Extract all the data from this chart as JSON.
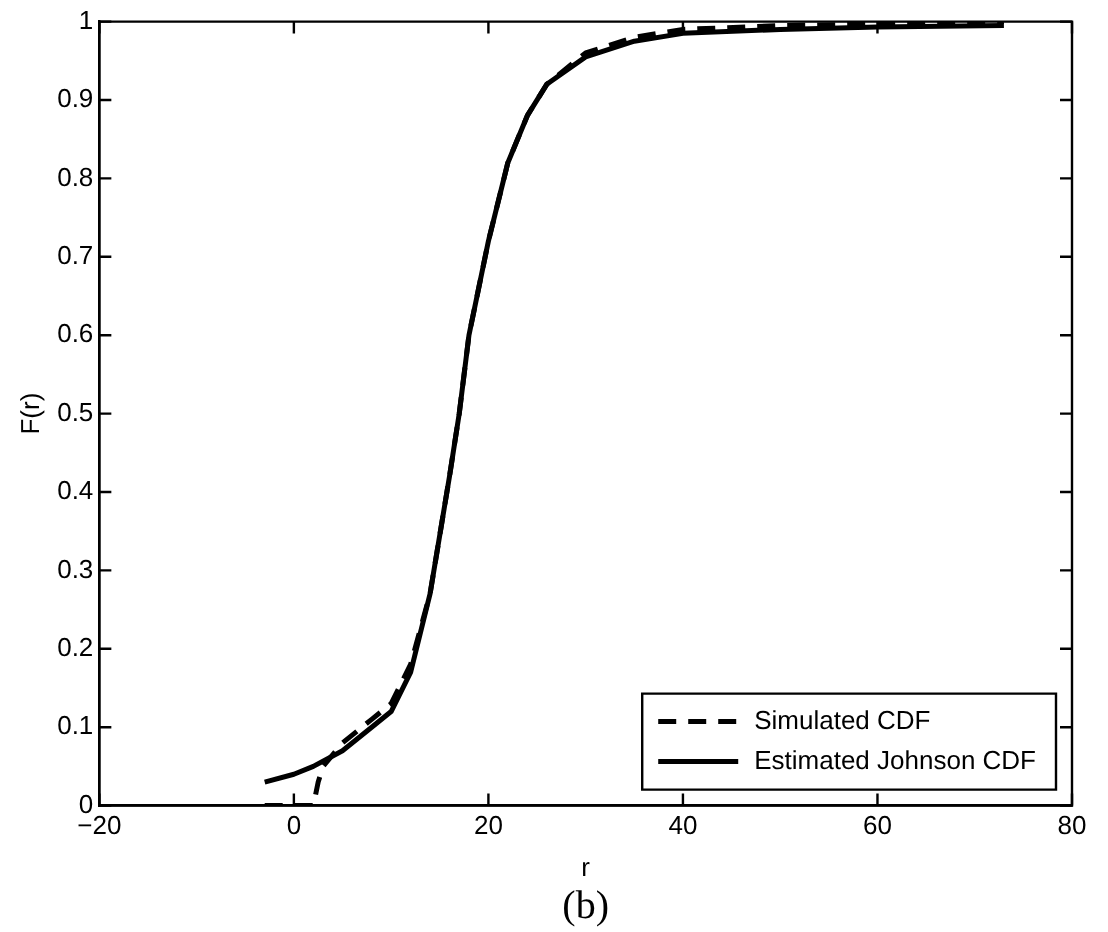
{
  "chart_data": {
    "type": "line",
    "xlabel": "r",
    "ylabel": "F(r)",
    "annotations": [
      "(b)"
    ],
    "xlim": [
      -20,
      80
    ],
    "xticks": [
      {
        "value": -20,
        "label": "−20"
      },
      0,
      20,
      40,
      60,
      80
    ],
    "ylim": [
      0,
      1
    ],
    "yticks": [
      0,
      0.1,
      0.2,
      0.3,
      0.4,
      0.5,
      0.6,
      0.7,
      0.8,
      0.9,
      1
    ],
    "grid": false,
    "legend": "bottom right",
    "marker": "none",
    "series": [
      {
        "name": "Simulated CDF",
        "color": "#000000",
        "line_style": "dashed",
        "x": [
          -3,
          2,
          2.5,
          3,
          5,
          8,
          10,
          12,
          14,
          16,
          17,
          18,
          20,
          22,
          24,
          26,
          30,
          35,
          40,
          50,
          60,
          73
        ],
        "values": [
          0,
          0,
          0.03,
          0.05,
          0.08,
          0.11,
          0.13,
          0.18,
          0.27,
          0.42,
          0.5,
          0.6,
          0.72,
          0.82,
          0.88,
          0.92,
          0.96,
          0.98,
          0.99,
          0.995,
          0.997,
          1.0
        ]
      },
      {
        "name": "Estimated Johnson CDF",
        "color": "#000000",
        "line_style": "solid",
        "x": [
          -3,
          0,
          2,
          5,
          8,
          10,
          12,
          14,
          16,
          17,
          18,
          20,
          22,
          24,
          26,
          30,
          35,
          40,
          50,
          60,
          73
        ],
        "values": [
          0.03,
          0.04,
          0.05,
          0.07,
          0.1,
          0.12,
          0.17,
          0.27,
          0.42,
          0.5,
          0.6,
          0.72,
          0.82,
          0.88,
          0.92,
          0.955,
          0.975,
          0.985,
          0.99,
          0.993,
          0.995
        ]
      }
    ]
  }
}
